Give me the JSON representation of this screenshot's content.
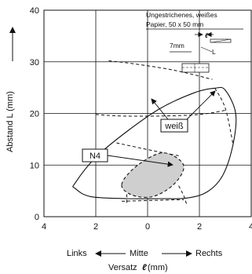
{
  "chart_data": {
    "type": "area",
    "xlim": [
      4,
      -4
    ],
    "ylim": [
      0,
      40
    ],
    "x_ticks": [
      "4",
      "2",
      "0",
      "2",
      "4"
    ],
    "x_tick_values": [
      -4,
      -2,
      0,
      2,
      4
    ],
    "y_ticks": [
      "0",
      "10",
      "20",
      "30",
      "40"
    ],
    "y_tick_values": [
      0,
      10,
      20,
      30,
      40
    ],
    "grid": true,
    "ylabel": "Abstand L (mm)",
    "xlabel": "Versatz",
    "xlabel_symbol": "ℓ",
    "xlabel_unit": "(mm)",
    "direction_labels": {
      "left": "Links",
      "center": "Mitte",
      "right": "Rechts"
    },
    "legend_note": {
      "line1": "Ungestrichenes, weißes",
      "line2": "Papier, 50 x 50 mm",
      "dim": "7mm",
      "symbol": "ℓ",
      "dim_L": "L"
    },
    "series": [
      {
        "name": "weiß",
        "outline": [
          [
            -2.8,
            6.5
          ],
          [
            -2.0,
            11.5
          ],
          [
            -0.8,
            16.5
          ],
          [
            0.5,
            21.0
          ],
          [
            1.8,
            24.0
          ],
          [
            2.6,
            24.9
          ],
          [
            3.0,
            24.5
          ],
          [
            3.4,
            20.0
          ],
          [
            3.3,
            14.0
          ],
          [
            2.9,
            8.0
          ],
          [
            2.3,
            4.8
          ],
          [
            1.5,
            3.6
          ],
          [
            0.5,
            3.5
          ],
          [
            -0.8,
            3.5
          ],
          [
            -2.2,
            3.9
          ],
          [
            -2.8,
            5.5
          ]
        ],
        "fill": false,
        "dashed_extensions": [
          [
            [
              2.6,
              24.9
            ],
            [
              3.0,
              21.0
            ],
            [
              3.3,
              14.0
            ]
          ],
          [
            [
              -1.5,
              30.2
            ],
            [
              -0.5,
              29.6
            ],
            [
              1.0,
              28.4
            ],
            [
              2.5,
              26.6
            ]
          ],
          [
            [
              -2.0,
              19.8
            ],
            [
              -1.0,
              19.5
            ],
            [
              0.5,
              19.5
            ],
            [
              2.0,
              19.8
            ],
            [
              3.0,
              20.6
            ]
          ]
        ]
      },
      {
        "name": "N4",
        "outline": [
          [
            -1.0,
            6.2
          ],
          [
            -0.5,
            9.5
          ],
          [
            0.4,
            12.2
          ],
          [
            1.0,
            11.8
          ],
          [
            1.4,
            9.6
          ],
          [
            1.0,
            6.2
          ],
          [
            0.2,
            3.9
          ],
          [
            -0.6,
            4.2
          ]
        ],
        "fill": true,
        "dashed_extensions": [
          [
            [
              -1.2,
              14.3
            ],
            [
              0.0,
              13.0
            ],
            [
              1.2,
              11.8
            ]
          ],
          [
            [
              -0.8,
              6.5
            ],
            [
              -0.8,
              4.0
            ],
            [
              -0.8,
              2.2
            ]
          ],
          [
            [
              1.2,
              6.0
            ],
            [
              1.4,
              4.0
            ],
            [
              1.5,
              2.5
            ]
          ],
          [
            [
              -1.0,
              3.0
            ],
            [
              0.5,
              3.2
            ],
            [
              1.4,
              3.3
            ]
          ]
        ]
      }
    ],
    "annotations": [
      {
        "text": "weiß",
        "anchor_data": [
          2.5,
          18.0
        ],
        "targets": [
          [
            0.8,
            22.0
          ],
          [
            2.6,
            24.5
          ]
        ]
      },
      {
        "text": "N4",
        "anchor_data": [
          -1.1,
          12.0
        ],
        "targets": [
          [
            1.3,
            10.5
          ]
        ]
      }
    ]
  }
}
